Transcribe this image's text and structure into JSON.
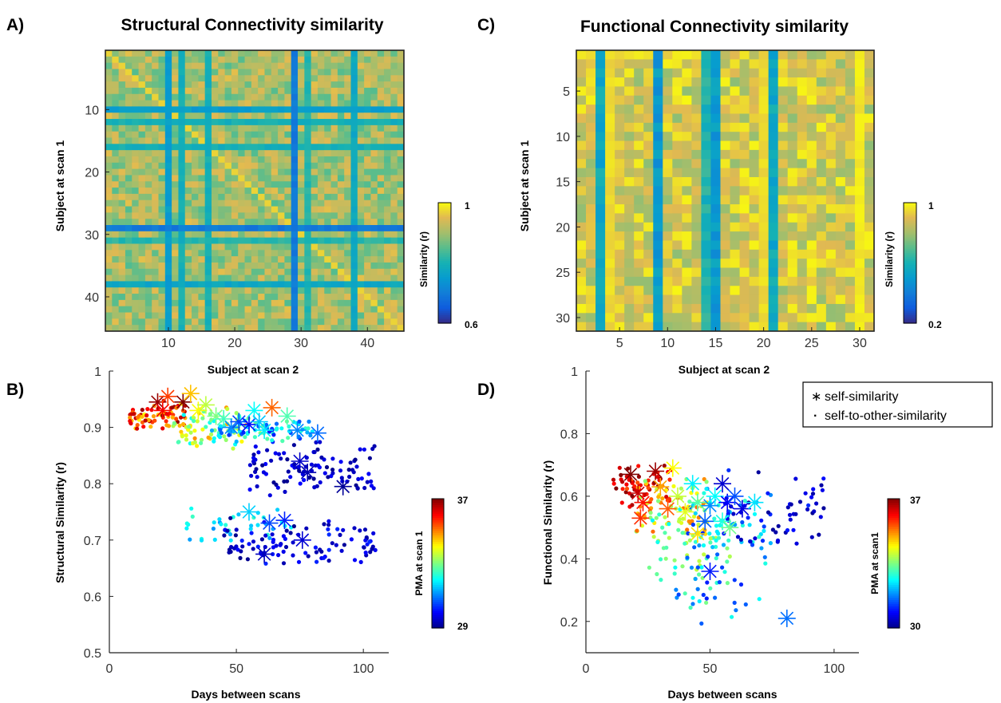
{
  "panels": {
    "A": "A)",
    "B": "B)",
    "C": "C)",
    "D": "D)"
  },
  "chart_data": [
    {
      "panel": "A",
      "type": "heatmap",
      "title": "Structural Connectivity similarity",
      "xlabel": "Subject at scan 2",
      "ylabel": "Subject at scan 1",
      "n": 45,
      "xticks": [
        10,
        20,
        30,
        40
      ],
      "yticks": [
        10,
        20,
        30,
        40
      ],
      "y_reversed": true,
      "colorbar": {
        "label": "Similarity (r)",
        "min": 0.6,
        "max": 1,
        "tick_labels": [
          "1",
          "0.6"
        ],
        "colormap": "parula"
      },
      "value_range": [
        0.6,
        1
      ],
      "typical_value": 0.9,
      "diagonal_value": 0.97,
      "low_subjects": [
        {
          "index": 10,
          "value": 0.74
        },
        {
          "index": 12,
          "value": 0.78
        },
        {
          "index": 16,
          "value": 0.78
        },
        {
          "index": 29,
          "value": 0.68
        },
        {
          "index": 31,
          "value": 0.8
        },
        {
          "index": 38,
          "value": 0.76
        }
      ]
    },
    {
      "panel": "C",
      "type": "heatmap",
      "title": "Functional Connectivity similarity",
      "xlabel": "Subject at scan 2",
      "ylabel": "Subject at scan 1",
      "n": 31,
      "xticks": [
        5,
        10,
        15,
        20,
        25,
        30
      ],
      "yticks": [
        5,
        10,
        15,
        20,
        25,
        30
      ],
      "y_reversed": true,
      "colorbar": {
        "label": "Similarity (r)",
        "min": 0.2,
        "max": 1,
        "tick_labels": [
          "1",
          "0.2"
        ],
        "colormap": "parula"
      },
      "value_range": [
        0.2,
        1
      ],
      "typical_value": 0.88,
      "columns_low": [
        {
          "index": 3,
          "value": 0.55
        },
        {
          "index": 9,
          "value": 0.5
        },
        {
          "index": 14,
          "value": 0.6
        },
        {
          "index": 15,
          "value": 0.5
        },
        {
          "index": 21,
          "value": 0.55
        }
      ],
      "columns_high": [
        {
          "index": 4,
          "value": 0.97
        },
        {
          "index": 20,
          "value": 0.97
        },
        {
          "index": 30,
          "value": 0.99
        }
      ]
    },
    {
      "panel": "B",
      "type": "scatter",
      "xlabel": "Days between scans",
      "ylabel": "Structural Similarity (r)",
      "xlim": [
        0,
        110
      ],
      "ylim": [
        0.5,
        1
      ],
      "xticks": [
        0,
        50,
        100
      ],
      "yticks": [
        0.5,
        0.6,
        0.7,
        0.8,
        0.9,
        1
      ],
      "colorbar": {
        "label": "PMA at scan 1",
        "min": 29,
        "max": 37,
        "tick_labels": [
          "37",
          "29"
        ],
        "colormap": "jet"
      },
      "series": [
        {
          "kind": "self-to-other-similarity",
          "clusters": [
            {
              "x": [
                8,
                30
              ],
              "y": [
                0.89,
                0.95
              ],
              "pma": [
                34,
                37
              ],
              "count": 75
            },
            {
              "x": [
                25,
                55
              ],
              "y": [
                0.86,
                0.94
              ],
              "pma": [
                32,
                35
              ],
              "count": 70
            },
            {
              "x": [
                40,
                80
              ],
              "y": [
                0.87,
                0.92
              ],
              "pma": [
                30,
                33
              ],
              "count": 70
            },
            {
              "x": [
                55,
                105
              ],
              "y": [
                0.77,
                0.88
              ],
              "pma": [
                29,
                30
              ],
              "count": 100
            },
            {
              "x": [
                30,
                72
              ],
              "y": [
                0.69,
                0.76
              ],
              "pma": [
                31,
                32.5
              ],
              "count": 35
            },
            {
              "x": [
                45,
                105
              ],
              "y": [
                0.65,
                0.74
              ],
              "pma": [
                29,
                30.3
              ],
              "count": 100
            }
          ]
        },
        {
          "kind": "self-similarity",
          "points": [
            {
              "x": 19,
              "y": 0.945,
              "pma": 36.8
            },
            {
              "x": 21,
              "y": 0.93,
              "pma": 36
            },
            {
              "x": 23,
              "y": 0.955,
              "pma": 35.5
            },
            {
              "x": 29,
              "y": 0.945,
              "pma": 37
            },
            {
              "x": 32,
              "y": 0.96,
              "pma": 34.5
            },
            {
              "x": 35,
              "y": 0.93,
              "pma": 34
            },
            {
              "x": 38,
              "y": 0.94,
              "pma": 33.5
            },
            {
              "x": 42,
              "y": 0.92,
              "pma": 33
            },
            {
              "x": 45,
              "y": 0.915,
              "pma": 32.5
            },
            {
              "x": 48,
              "y": 0.9,
              "pma": 31
            },
            {
              "x": 51,
              "y": 0.91,
              "pma": 30.5
            },
            {
              "x": 55,
              "y": 0.905,
              "pma": 30
            },
            {
              "x": 57,
              "y": 0.93,
              "pma": 32
            },
            {
              "x": 59,
              "y": 0.91,
              "pma": 31.5
            },
            {
              "x": 61,
              "y": 0.895,
              "pma": 31.8
            },
            {
              "x": 64,
              "y": 0.935,
              "pma": 35.2
            },
            {
              "x": 70,
              "y": 0.92,
              "pma": 32.6
            },
            {
              "x": 74,
              "y": 0.895,
              "pma": 31
            },
            {
              "x": 82,
              "y": 0.89,
              "pma": 30.8
            },
            {
              "x": 75,
              "y": 0.84,
              "pma": 29.5
            },
            {
              "x": 78,
              "y": 0.82,
              "pma": 29.3
            },
            {
              "x": 92,
              "y": 0.795,
              "pma": 29.1
            },
            {
              "x": 55,
              "y": 0.75,
              "pma": 31.6
            },
            {
              "x": 63,
              "y": 0.73,
              "pma": 30.5
            },
            {
              "x": 69,
              "y": 0.735,
              "pma": 30.2
            },
            {
              "x": 76,
              "y": 0.7,
              "pma": 29.6
            },
            {
              "x": 61,
              "y": 0.675,
              "pma": 29.4
            }
          ]
        }
      ]
    },
    {
      "panel": "D",
      "type": "scatter",
      "xlabel": "Days between scans",
      "ylabel": "Functional Similarity (r)",
      "xlim": [
        0,
        110
      ],
      "ylim": [
        0.1,
        1
      ],
      "xticks": [
        0,
        50,
        100
      ],
      "yticks": [
        0.2,
        0.4,
        0.6,
        0.8,
        1
      ],
      "colorbar": {
        "label": "PMA at scan1",
        "min": 30,
        "max": 37,
        "tick_labels": [
          "37",
          "30"
        ],
        "colormap": "jet"
      },
      "legend": {
        "position": "top-right",
        "entries": [
          {
            "marker": "∗",
            "label": "self-similarity"
          },
          {
            "marker": "·",
            "label": "self-to-other-similarity"
          }
        ]
      },
      "series": [
        {
          "kind": "self-to-other-similarity",
          "clusters": [
            {
              "x": [
                10,
                35
              ],
              "y": [
                0.55,
                0.71
              ],
              "pma": [
                35.5,
                37
              ],
              "count": 60
            },
            {
              "x": [
                20,
                50
              ],
              "y": [
                0.45,
                0.68
              ],
              "pma": [
                33.5,
                35.5
              ],
              "count": 70
            },
            {
              "x": [
                25,
                60
              ],
              "y": [
                0.3,
                0.62
              ],
              "pma": [
                32.5,
                34
              ],
              "count": 60
            },
            {
              "x": [
                40,
                75
              ],
              "y": [
                0.35,
                0.65
              ],
              "pma": [
                31,
                33
              ],
              "count": 60
            },
            {
              "x": [
                55,
                98
              ],
              "y": [
                0.42,
                0.7
              ],
              "pma": [
                30,
                31.2
              ],
              "count": 55
            },
            {
              "x": [
                35,
                70
              ],
              "y": [
                0.18,
                0.42
              ],
              "pma": [
                31,
                33.5
              ],
              "count": 30
            }
          ]
        },
        {
          "kind": "self-similarity",
          "points": [
            {
              "x": 18,
              "y": 0.67,
              "pma": 37
            },
            {
              "x": 21,
              "y": 0.61,
              "pma": 36.5
            },
            {
              "x": 23,
              "y": 0.58,
              "pma": 36
            },
            {
              "x": 28,
              "y": 0.68,
              "pma": 36.8
            },
            {
              "x": 30,
              "y": 0.63,
              "pma": 35
            },
            {
              "x": 33,
              "y": 0.56,
              "pma": 35.5
            },
            {
              "x": 35,
              "y": 0.69,
              "pma": 34.4
            },
            {
              "x": 37,
              "y": 0.6,
              "pma": 34
            },
            {
              "x": 22,
              "y": 0.53,
              "pma": 35.8
            },
            {
              "x": 40,
              "y": 0.55,
              "pma": 34.2
            },
            {
              "x": 43,
              "y": 0.64,
              "pma": 32.5
            },
            {
              "x": 45,
              "y": 0.58,
              "pma": 33.2
            },
            {
              "x": 48,
              "y": 0.52,
              "pma": 31.5
            },
            {
              "x": 50,
              "y": 0.57,
              "pma": 31.8
            },
            {
              "x": 52,
              "y": 0.6,
              "pma": 32.6
            },
            {
              "x": 55,
              "y": 0.64,
              "pma": 30.5
            },
            {
              "x": 57,
              "y": 0.58,
              "pma": 30.8
            },
            {
              "x": 60,
              "y": 0.6,
              "pma": 31.4
            },
            {
              "x": 63,
              "y": 0.56,
              "pma": 30.6
            },
            {
              "x": 68,
              "y": 0.58,
              "pma": 32.4
            },
            {
              "x": 55,
              "y": 0.52,
              "pma": 32.8
            },
            {
              "x": 50,
              "y": 0.36,
              "pma": 31
            },
            {
              "x": 58,
              "y": 0.5,
              "pma": 33.4
            },
            {
              "x": 81,
              "y": 0.21,
              "pma": 31.6
            },
            {
              "x": 45,
              "y": 0.48,
              "pma": 34.6
            }
          ]
        }
      ]
    }
  ]
}
